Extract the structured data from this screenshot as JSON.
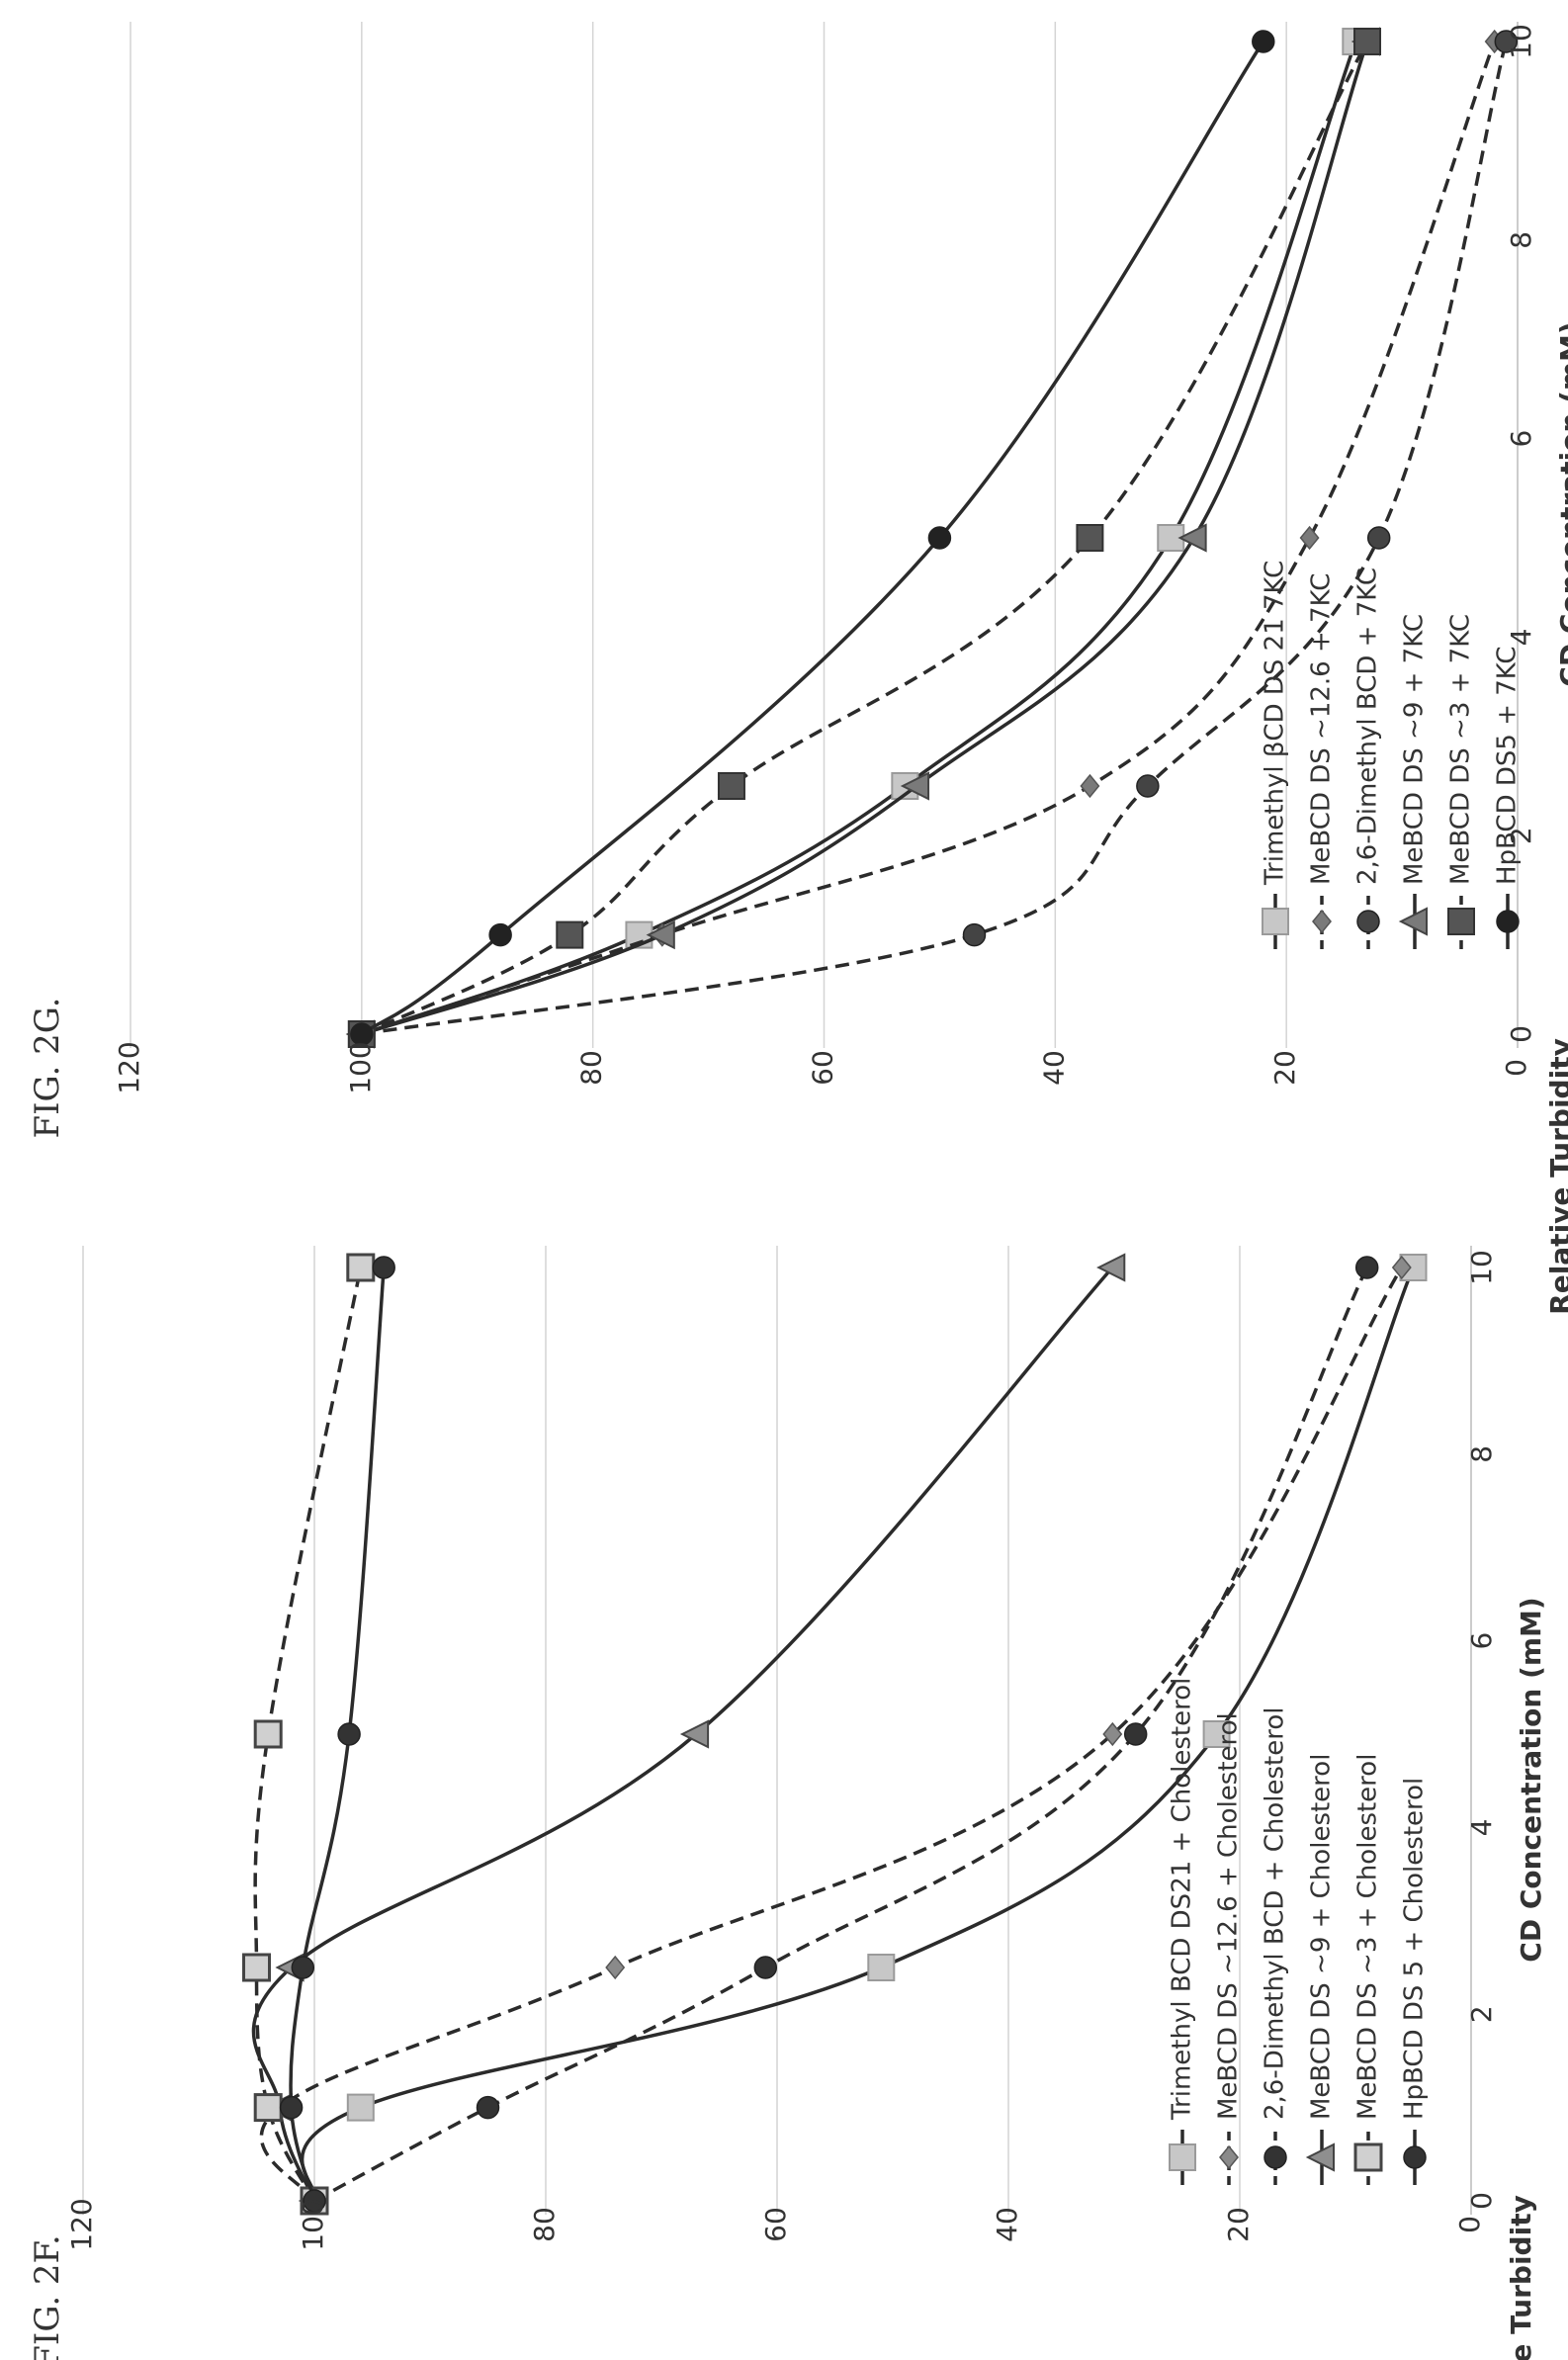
{
  "page": {
    "fig_f_caption": "FIG. 2F.",
    "fig_g_caption": "FIG. 2G."
  },
  "colors": {
    "text": "#333333",
    "line": "#2b2b2b",
    "grid": "#d4d4d4",
    "light_square": "#c7c7c7",
    "mid_square": "#a8a8a8",
    "dark_square": "#555555",
    "diamond": "#8a8a8a",
    "triangle": "#8f8f8f"
  },
  "chart_data": [
    {
      "id": "fig-2f",
      "type": "line",
      "title": "",
      "xlabel": "CD Concentration (mM)",
      "ylabel": "Relative Turbidity",
      "xlim": [
        0,
        10
      ],
      "ylim": [
        0,
        120
      ],
      "x_ticks": [
        "0",
        "2",
        "4",
        "6",
        "8",
        "10"
      ],
      "y_ticks": [
        "0",
        "20",
        "40",
        "60",
        "80",
        "100",
        "120"
      ],
      "grid": true,
      "legend_position": "bottom",
      "x": [
        0,
        1,
        2.5,
        5,
        10
      ],
      "series": [
        {
          "name": "Trimethyl BCD DS21 + Cholesterol",
          "values": [
            100,
            96,
            51,
            22,
            5
          ],
          "dashed": false,
          "marker": "square",
          "fill": "#c7c7c7"
        },
        {
          "name": "MeBCD DS ~12.6 + Cholesterol",
          "values": [
            100,
            103,
            74,
            31,
            6
          ],
          "dashed": true,
          "marker": "diamond",
          "fill": "#8a8a8a"
        },
        {
          "name": "2,6-Dimethyl BCD + Cholesterol",
          "values": [
            100,
            85,
            61,
            29,
            9
          ],
          "dashed": true,
          "marker": "circle",
          "fill": "#333333"
        },
        {
          "name": "MeBCD DS ~9 + Cholesterol",
          "values": [
            100,
            103,
            102,
            67,
            31
          ],
          "dashed": false,
          "marker": "triangle",
          "fill": "#8f8f8f"
        },
        {
          "name": "MeBCD DS ~3 + Cholesterol",
          "values": [
            100,
            104,
            105,
            104,
            96
          ],
          "dashed": true,
          "marker": "square-open",
          "fill": "#d0d0d0"
        },
        {
          "name": "HpBCD DS 5 + Cholesterol",
          "values": [
            100,
            102,
            101,
            97,
            94
          ],
          "dashed": false,
          "marker": "circle",
          "fill": "#333333"
        }
      ]
    },
    {
      "id": "fig-2g",
      "type": "line",
      "title": "",
      "xlabel": "CD Concentration (mM)",
      "ylabel": "Relative Turbidity",
      "xlim": [
        0,
        10
      ],
      "ylim": [
        0,
        120
      ],
      "x_ticks": [
        "0",
        "2",
        "4",
        "6",
        "8",
        "10"
      ],
      "y_ticks": [
        "0",
        "20",
        "40",
        "60",
        "80",
        "100",
        "120"
      ],
      "grid": true,
      "legend_position": "bottom",
      "x": [
        0,
        1,
        2.5,
        5,
        10
      ],
      "series": [
        {
          "name": "Trimethyl βCD DS 21 7KC",
          "values": [
            100,
            76,
            53,
            30,
            14
          ],
          "dashed": false,
          "marker": "square",
          "fill": "#c7c7c7"
        },
        {
          "name": "MeBCD DS ~12.6 + 7KC",
          "values": [
            100,
            74,
            37,
            18,
            2
          ],
          "dashed": true,
          "marker": "diamond",
          "fill": "#7a7a7a"
        },
        {
          "name": "2,6-Dimethyl BCD + 7KC",
          "values": [
            100,
            47,
            32,
            12,
            1
          ],
          "dashed": true,
          "marker": "circle",
          "fill": "#444444"
        },
        {
          "name": "MeBCD DS ~9 + 7KC",
          "values": [
            100,
            74,
            52,
            28,
            13
          ],
          "dashed": false,
          "marker": "triangle",
          "fill": "#7a7a7a"
        },
        {
          "name": "MeBCD DS ~3 + 7KC",
          "values": [
            100,
            82,
            68,
            37,
            13
          ],
          "dashed": true,
          "marker": "square",
          "fill": "#555555"
        },
        {
          "name": "HpBCD DS5 + 7KC",
          "values": [
            100,
            88,
            null,
            50,
            22
          ],
          "dashed": false,
          "marker": "circle",
          "fill": "#222222"
        }
      ]
    }
  ]
}
